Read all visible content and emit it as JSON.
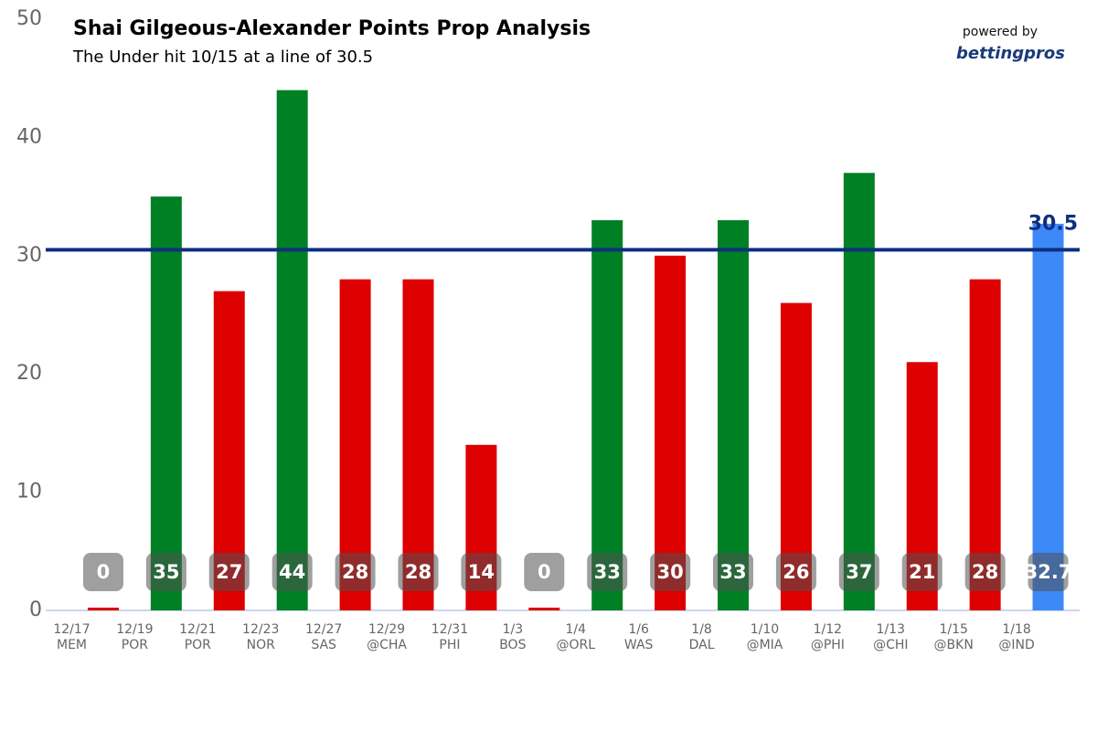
{
  "chart_data": {
    "type": "bar",
    "title": "Shai Gilgeous-Alexander Points Prop Analysis",
    "subtitle": "The Under hit 10/15 at a line of 30.5",
    "powered_by": "powered by",
    "brand": "bettingpros",
    "categories": [
      [
        "12/17",
        "MEM"
      ],
      [
        "12/19",
        "POR"
      ],
      [
        "12/21",
        "POR"
      ],
      [
        "12/23",
        "NOR"
      ],
      [
        "12/27",
        "SAS"
      ],
      [
        "12/29",
        "@CHA"
      ],
      [
        "12/31",
        "PHI"
      ],
      [
        "1/3",
        "BOS"
      ],
      [
        "1/4",
        "@ORL"
      ],
      [
        "1/6",
        "WAS"
      ],
      [
        "1/8",
        "DAL"
      ],
      [
        "1/10",
        "@MIA"
      ],
      [
        "1/12",
        "@PHI"
      ],
      [
        "1/13",
        "@CHI"
      ],
      [
        "1/15",
        "@BKN"
      ],
      [
        "1/18",
        "@IND"
      ]
    ],
    "values": [
      0,
      35,
      27,
      44,
      28,
      28,
      14,
      0,
      33,
      30,
      33,
      26,
      37,
      21,
      28,
      32.7
    ],
    "colors": [
      "#dd0000",
      "#008025",
      "#dd0000",
      "#008025",
      "#dd0000",
      "#dd0000",
      "#dd0000",
      "#dd0000",
      "#008025",
      "#dd0000",
      "#008025",
      "#dd0000",
      "#008025",
      "#dd0000",
      "#dd0000",
      "#3d88f7"
    ],
    "line": {
      "value": 30.5,
      "label": "30.5",
      "color": "#0d2f80"
    },
    "ylim": [
      0,
      50
    ],
    "yticks": [
      0,
      10,
      20,
      30,
      40,
      50
    ],
    "grid": false
  }
}
